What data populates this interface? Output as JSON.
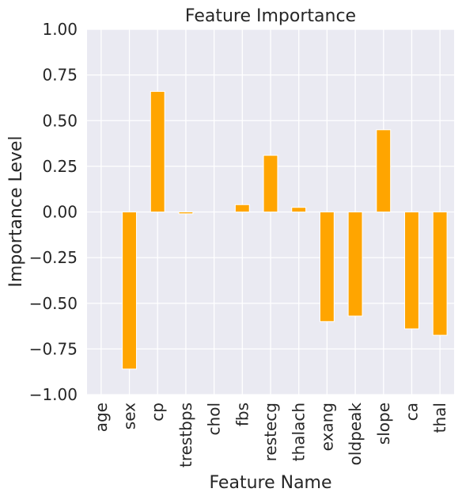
{
  "chart_data": {
    "type": "bar",
    "title": "Feature Importance",
    "xlabel": "Feature Name",
    "ylabel": "Importance Level",
    "categories": [
      "age",
      "sex",
      "cp",
      "trestbps",
      "chol",
      "fbs",
      "restecg",
      "thalach",
      "exang",
      "oldpeak",
      "slope",
      "ca",
      "thal"
    ],
    "values": [
      0.0,
      -0.86,
      0.66,
      -0.01,
      0.0,
      0.04,
      0.31,
      0.025,
      -0.6,
      -0.57,
      0.45,
      -0.64,
      -0.675
    ],
    "ylim": [
      -1.0,
      1.0
    ],
    "yticks": [
      "-1.00",
      "-0.75",
      "-0.50",
      "-0.25",
      "0.00",
      "0.25",
      "0.50",
      "0.75",
      "1.00"
    ],
    "ytick_values": [
      -1.0,
      -0.75,
      -0.5,
      -0.25,
      0.0,
      0.25,
      0.5,
      0.75,
      1.0
    ],
    "grid": true,
    "bar_color": "#ffa500",
    "background_color": "#eaeaf2"
  }
}
